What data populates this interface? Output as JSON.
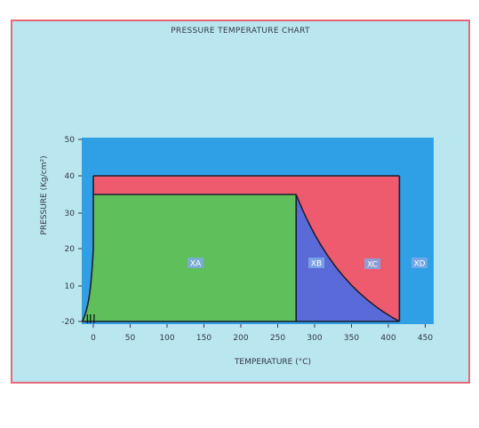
{
  "chart_data": {
    "type": "area",
    "title": "PRESSURE TEMPERATURE CHART",
    "xlabel": "TEMPERATURE (°C)",
    "ylabel": "PRESSURE (Kg/cm²)",
    "x_ticks": [
      "0",
      "50",
      "100",
      "150",
      "200",
      "250",
      "300",
      "350",
      "400",
      "450"
    ],
    "y_ticks": [
      "-20",
      "10",
      "20",
      "30",
      "40",
      "50"
    ],
    "xlim": [
      -15,
      450
    ],
    "ylim_ticks": [
      "-20",
      "50"
    ],
    "grid": false,
    "regions": [
      {
        "name": "XA",
        "color": "#5fbf5a",
        "boundary_desc": "0-275 °C, up to 35 Kg/cm²"
      },
      {
        "name": "XB",
        "color": "#5a6ad8",
        "boundary_desc": "275 °C to curve"
      },
      {
        "name": "XC",
        "color": "#ee5a6e",
        "boundary_desc": "up to 40 Kg/cm², to 415 °C"
      },
      {
        "name": "XD",
        "color": "#2f9fe6",
        "boundary_desc": "outer region"
      }
    ],
    "boundaries": {
      "xa_top": {
        "x": [
          0,
          275
        ],
        "y": [
          35,
          35
        ]
      },
      "xb_curve": {
        "x": [
          275,
          300,
          330,
          360,
          390,
          415
        ],
        "y": [
          35,
          27,
          18,
          10,
          3,
          -20
        ]
      },
      "xc_top": {
        "x": [
          0,
          415
        ],
        "y": [
          40,
          40
        ]
      },
      "xc_right": {
        "x": [
          415,
          415
        ],
        "y": [
          -20,
          40
        ]
      },
      "left_curve": {
        "x": [
          -15,
          -10,
          -5,
          0,
          0
        ],
        "y": [
          -20,
          -15,
          0,
          20,
          40
        ]
      }
    }
  },
  "colors": {
    "background": "#b9e6ef",
    "frame": "#e46a7a",
    "plot_bg": "#2f9fe6",
    "xa": "#5fbf5a",
    "xb": "#5a6ad8",
    "xc": "#ee5a6e"
  }
}
